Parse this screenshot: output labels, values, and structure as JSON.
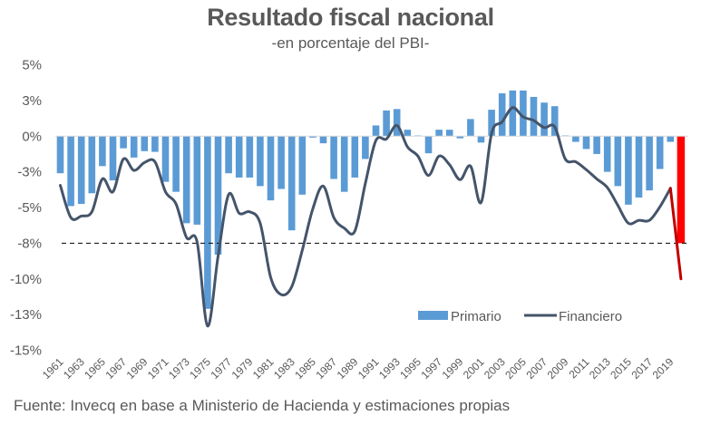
{
  "chart_data": {
    "type": "bar+line",
    "title": "Resultado fiscal nacional",
    "subtitle": "-en porcentaje del PBI-",
    "source": "Fuente: Invecq en base a Ministerio de Hacienda y estimaciones propias",
    "xlabel": "",
    "ylabel": "",
    "ylim": [
      -15,
      5
    ],
    "yticks": [
      5,
      2.5,
      0,
      -2.5,
      -5,
      -7.5,
      -10,
      -12.5,
      -15
    ],
    "ytick_labels": [
      "5%",
      "3%",
      "0%",
      "-3%",
      "-5%",
      "-8%",
      "-10%",
      "-13%",
      "-15%"
    ],
    "xtick_labels": [
      "1961",
      "1963",
      "1965",
      "1967",
      "1969",
      "1971",
      "1973",
      "1975",
      "1977",
      "1979",
      "1981",
      "1983",
      "1985",
      "1987",
      "1989",
      "1991",
      "1993",
      "1995",
      "1997",
      "1999",
      "2001",
      "2003",
      "2005",
      "2007",
      "2009",
      "2011",
      "2013",
      "2015",
      "2017",
      "2019"
    ],
    "reference_line": {
      "value": -7.5,
      "style": "dashed",
      "color": "#000000"
    },
    "legend": {
      "placement": "bottom-right",
      "entries": [
        "Primario",
        "Financiero"
      ]
    },
    "colors": {
      "primario": "#5B9BD5",
      "financiero": "#44546A",
      "estimate": "#FF0000",
      "estimate_line": "#C00000"
    },
    "years": [
      1961,
      1962,
      1963,
      1964,
      1965,
      1966,
      1967,
      1968,
      1969,
      1970,
      1971,
      1972,
      1973,
      1974,
      1975,
      1976,
      1977,
      1978,
      1979,
      1980,
      1981,
      1982,
      1983,
      1984,
      1985,
      1986,
      1987,
      1988,
      1989,
      1990,
      1991,
      1992,
      1993,
      1994,
      1995,
      1996,
      1997,
      1998,
      1999,
      2000,
      2001,
      2002,
      2003,
      2004,
      2005,
      2006,
      2007,
      2008,
      2009,
      2010,
      2011,
      2012,
      2013,
      2014,
      2015,
      2016,
      2017,
      2018,
      2019,
      2020
    ],
    "series": [
      {
        "name": "Primario",
        "type": "bar",
        "values": [
          -2.6,
          -4.9,
          -4.75,
          -4.0,
          -2.1,
          -3.1,
          -0.85,
          -1.5,
          -1.05,
          -1.1,
          -3.2,
          -3.9,
          -6.1,
          -6.2,
          -12.1,
          -8.3,
          -2.6,
          -2.9,
          -2.9,
          -3.5,
          -4.5,
          -3.7,
          -6.6,
          -4.1,
          -0.1,
          -0.5,
          -3.0,
          -3.9,
          -2.9,
          -1.6,
          0.75,
          1.8,
          1.9,
          0.45,
          0.05,
          -1.2,
          0.45,
          0.45,
          -0.15,
          1.2,
          -0.45,
          1.85,
          3.0,
          3.2,
          3.2,
          2.75,
          2.35,
          2.1,
          0.05,
          -0.4,
          -0.9,
          -1.25,
          -2.5,
          -3.5,
          -4.8,
          -4.3,
          -3.8,
          -2.3,
          -0.4,
          -7.5
        ],
        "highlight_last": true
      },
      {
        "name": "Financiero",
        "type": "line",
        "values": [
          -3.45,
          -5.7,
          -5.6,
          -5.3,
          -3.0,
          -3.9,
          -1.6,
          -2.4,
          -1.85,
          -1.8,
          -3.9,
          -4.75,
          -7.1,
          -7.4,
          -13.3,
          -8.4,
          -4.1,
          -5.4,
          -5.3,
          -6.1,
          -9.9,
          -11.1,
          -10.55,
          -8.0,
          -5.1,
          -3.5,
          -5.7,
          -6.45,
          -6.65,
          -3.3,
          -0.3,
          -0.2,
          0.75,
          -0.75,
          -1.4,
          -2.75,
          -1.4,
          -2.0,
          -3.05,
          -2.1,
          -4.65,
          0.2,
          1.0,
          2.0,
          1.35,
          1.1,
          0.6,
          0.65,
          -1.6,
          -1.8,
          -2.35,
          -3.0,
          -3.6,
          -4.85,
          -6.1,
          -5.9,
          -5.9,
          -4.95,
          -3.65,
          -10.0
        ],
        "highlight_last": true
      }
    ]
  }
}
